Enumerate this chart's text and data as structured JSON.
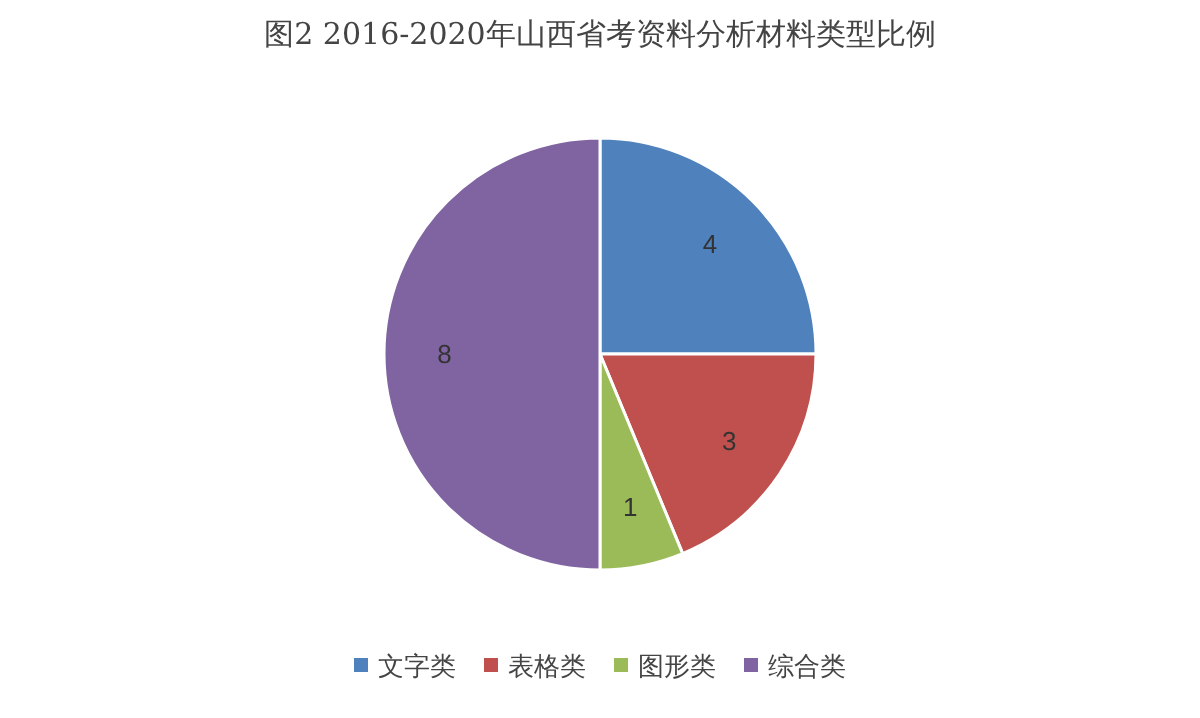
{
  "chart_data": {
    "type": "pie",
    "title": "图2 2016-2020年山西省考资料分析材料类型比例",
    "categories": [
      "文字类",
      "表格类",
      "图形类",
      "综合类"
    ],
    "values": [
      4,
      3,
      1,
      8
    ],
    "colors": [
      "#4f81bd",
      "#c0504d",
      "#9bbb59",
      "#8064a2"
    ],
    "data_labels": true,
    "legend": "bottom"
  }
}
